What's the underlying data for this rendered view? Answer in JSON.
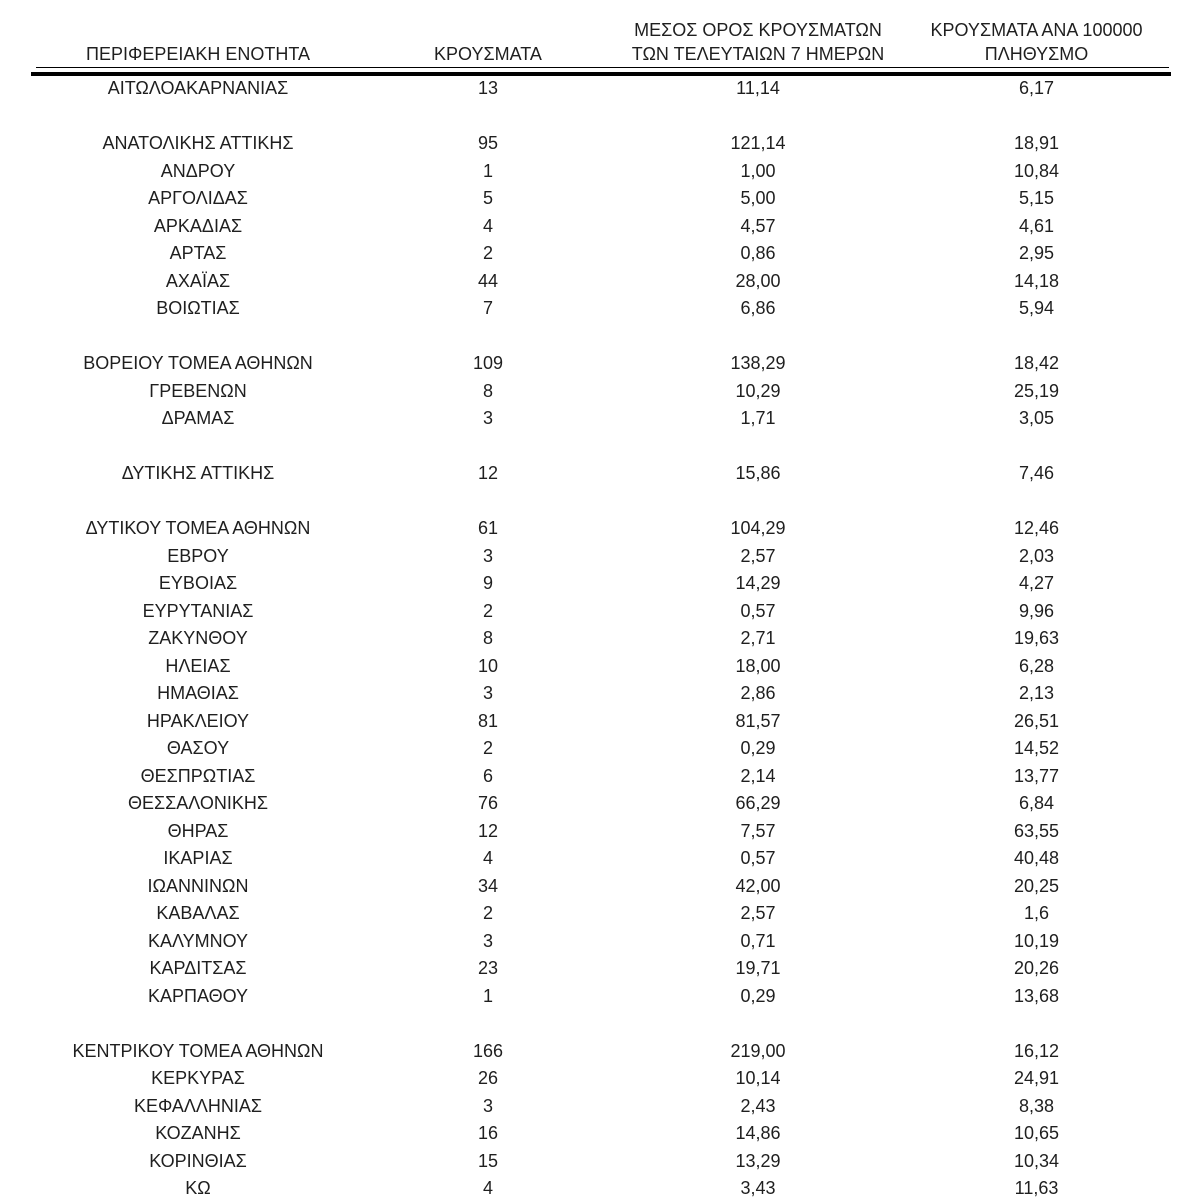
{
  "table": {
    "columns": {
      "region": "ΠΕΡΙΦΕΡΕΙΑΚΗ ΕΝΟΤΗΤΑ",
      "cases": "ΚΡΟΥΣΜΑΤΑ",
      "avg7_line1": "ΜΕΣΟΣ ΟΡΟΣ ΚΡΟΥΣΜΑΤΩΝ",
      "avg7_line2": "ΤΩΝ ΤΕΛΕΥΤΑΙΩΝ 7 ΗΜΕΡΩΝ",
      "per100k_line1": "ΚΡΟΥΣΜΑΤΑ ΑΝΑ 100000",
      "per100k_line2": "ΠΛΗΘΥΣΜΟ"
    },
    "rows": [
      {
        "region": "ΑΙΤΩΛΟΑΚΑΡΝΑΝΙΑΣ",
        "cases": "13",
        "avg7": "11,14",
        "per100k": "6,17",
        "spacer_after": true
      },
      {
        "region": "ΑΝΑΤΟΛΙΚΗΣ ΑΤΤΙΚΗΣ",
        "cases": "95",
        "avg7": "121,14",
        "per100k": "18,91",
        "spacer_after": false
      },
      {
        "region": "ΑΝΔΡΟΥ",
        "cases": "1",
        "avg7": "1,00",
        "per100k": "10,84",
        "spacer_after": false
      },
      {
        "region": "ΑΡΓΟΛΙΔΑΣ",
        "cases": "5",
        "avg7": "5,00",
        "per100k": "5,15",
        "spacer_after": false
      },
      {
        "region": "ΑΡΚΑΔΙΑΣ",
        "cases": "4",
        "avg7": "4,57",
        "per100k": "4,61",
        "spacer_after": false
      },
      {
        "region": "ΑΡΤΑΣ",
        "cases": "2",
        "avg7": "0,86",
        "per100k": "2,95",
        "spacer_after": false
      },
      {
        "region": "ΑΧΑΪΑΣ",
        "cases": "44",
        "avg7": "28,00",
        "per100k": "14,18",
        "spacer_after": false
      },
      {
        "region": "ΒΟΙΩΤΙΑΣ",
        "cases": "7",
        "avg7": "6,86",
        "per100k": "5,94",
        "spacer_after": true
      },
      {
        "region": "ΒΟΡΕΙΟΥ ΤΟΜΕΑ ΑΘΗΝΩΝ",
        "cases": "109",
        "avg7": "138,29",
        "per100k": "18,42",
        "spacer_after": false
      },
      {
        "region": "ΓΡΕΒΕΝΩΝ",
        "cases": "8",
        "avg7": "10,29",
        "per100k": "25,19",
        "spacer_after": false
      },
      {
        "region": "ΔΡΑΜΑΣ",
        "cases": "3",
        "avg7": "1,71",
        "per100k": "3,05",
        "spacer_after": true
      },
      {
        "region": "ΔΥΤΙΚΗΣ ΑΤΤΙΚΗΣ",
        "cases": "12",
        "avg7": "15,86",
        "per100k": "7,46",
        "spacer_after": true
      },
      {
        "region": "ΔΥΤΙΚΟΥ ΤΟΜΕΑ ΑΘΗΝΩΝ",
        "cases": "61",
        "avg7": "104,29",
        "per100k": "12,46",
        "spacer_after": false
      },
      {
        "region": "ΕΒΡΟΥ",
        "cases": "3",
        "avg7": "2,57",
        "per100k": "2,03",
        "spacer_after": false
      },
      {
        "region": "ΕΥΒΟΙΑΣ",
        "cases": "9",
        "avg7": "14,29",
        "per100k": "4,27",
        "spacer_after": false
      },
      {
        "region": "ΕΥΡΥΤΑΝΙΑΣ",
        "cases": "2",
        "avg7": "0,57",
        "per100k": "9,96",
        "spacer_after": false
      },
      {
        "region": "ΖΑΚΥΝΘΟΥ",
        "cases": "8",
        "avg7": "2,71",
        "per100k": "19,63",
        "spacer_after": false
      },
      {
        "region": "ΗΛΕΙΑΣ",
        "cases": "10",
        "avg7": "18,00",
        "per100k": "6,28",
        "spacer_after": false
      },
      {
        "region": "ΗΜΑΘΙΑΣ",
        "cases": "3",
        "avg7": "2,86",
        "per100k": "2,13",
        "spacer_after": false
      },
      {
        "region": "ΗΡΑΚΛΕΙΟΥ",
        "cases": "81",
        "avg7": "81,57",
        "per100k": "26,51",
        "spacer_after": false
      },
      {
        "region": "ΘΑΣΟΥ",
        "cases": "2",
        "avg7": "0,29",
        "per100k": "14,52",
        "spacer_after": false
      },
      {
        "region": "ΘΕΣΠΡΩΤΙΑΣ",
        "cases": "6",
        "avg7": "2,14",
        "per100k": "13,77",
        "spacer_after": false
      },
      {
        "region": "ΘΕΣΣΑΛΟΝΙΚΗΣ",
        "cases": "76",
        "avg7": "66,29",
        "per100k": "6,84",
        "spacer_after": false
      },
      {
        "region": "ΘΗΡΑΣ",
        "cases": "12",
        "avg7": "7,57",
        "per100k": "63,55",
        "spacer_after": false
      },
      {
        "region": "ΙΚΑΡΙΑΣ",
        "cases": "4",
        "avg7": "0,57",
        "per100k": "40,48",
        "spacer_after": false
      },
      {
        "region": "ΙΩΑΝΝΙΝΩΝ",
        "cases": "34",
        "avg7": "42,00",
        "per100k": "20,25",
        "spacer_after": false
      },
      {
        "region": "ΚΑΒΑΛΑΣ",
        "cases": "2",
        "avg7": "2,57",
        "per100k": "1,6",
        "spacer_after": false
      },
      {
        "region": "ΚΑΛΥΜΝΟΥ",
        "cases": "3",
        "avg7": "0,71",
        "per100k": "10,19",
        "spacer_after": false
      },
      {
        "region": "ΚΑΡΔΙΤΣΑΣ",
        "cases": "23",
        "avg7": "19,71",
        "per100k": "20,26",
        "spacer_after": false
      },
      {
        "region": "ΚΑΡΠΑΘΟΥ",
        "cases": "1",
        "avg7": "0,29",
        "per100k": "13,68",
        "spacer_after": true
      },
      {
        "region": "ΚΕΝΤΡΙΚΟΥ ΤΟΜΕΑ ΑΘΗΝΩΝ",
        "cases": "166",
        "avg7": "219,00",
        "per100k": "16,12",
        "spacer_after": false
      },
      {
        "region": "ΚΕΡΚΥΡΑΣ",
        "cases": "26",
        "avg7": "10,14",
        "per100k": "24,91",
        "spacer_after": false
      },
      {
        "region": "ΚΕΦΑΛΛΗΝΙΑΣ",
        "cases": "3",
        "avg7": "2,43",
        "per100k": "8,38",
        "spacer_after": false
      },
      {
        "region": "ΚΟΖΑΝΗΣ",
        "cases": "16",
        "avg7": "14,86",
        "per100k": "10,65",
        "spacer_after": false
      },
      {
        "region": "ΚΟΡΙΝΘΙΑΣ",
        "cases": "15",
        "avg7": "13,29",
        "per100k": "10,34",
        "spacer_after": false
      },
      {
        "region": "ΚΩ",
        "cases": "4",
        "avg7": "3,43",
        "per100k": "11,63",
        "spacer_after": false
      }
    ]
  },
  "colors": {
    "text": "#1f1f1f",
    "rule": "#000000",
    "background": "#ffffff"
  }
}
